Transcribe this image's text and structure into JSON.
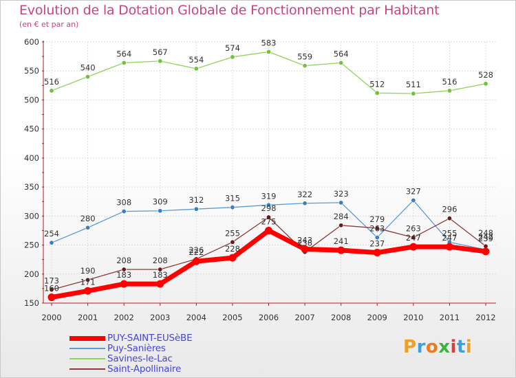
{
  "title": "Evolution de la Dotation Globale de Fonctionnement par Habitant",
  "subtitle": "(en € et par an)",
  "colors": {
    "title": "#c8447e",
    "axis": "#aa2222",
    "grid": "#dddddd",
    "legend_text": "#4545d8"
  },
  "logo": {
    "letters": [
      "P",
      "r",
      "o",
      "x",
      "i",
      "t",
      "i"
    ],
    "colors": [
      "#f0a020",
      "#3ca0dc",
      "#f07820",
      "#3cb43c",
      "#dc3c3c",
      "#3ca0dc",
      "#f0a020"
    ]
  },
  "chart_data": {
    "type": "line",
    "title": "Evolution de la Dotation Globale de Fonctionnement par Habitant",
    "subtitle": "(en € et par an)",
    "xlabel": "",
    "ylabel": "",
    "x": [
      "2000",
      "2001",
      "2002",
      "2003",
      "2004",
      "2005",
      "2006",
      "2007",
      "2008",
      "2009",
      "2010",
      "2011",
      "2012"
    ],
    "ylim": [
      150,
      600
    ],
    "yticks": [
      150,
      200,
      250,
      300,
      350,
      400,
      450,
      500,
      550,
      600
    ],
    "grid": true,
    "legend_position": "bottom-left",
    "series": [
      {
        "name": "PUY-SAINT-EUSèBE",
        "color": "#ff0000",
        "marker": "#ff0000",
        "values": [
          160,
          171,
          183,
          183,
          222,
          228,
          275,
          243,
          241,
          237,
          247,
          247,
          239
        ],
        "labels": [
          "160",
          "171",
          "183",
          "183",
          "222",
          "228",
          "275",
          "243",
          "241",
          "237",
          "247",
          "247",
          "239"
        ],
        "label_dy": [
          -9,
          -9,
          -9,
          -9,
          -9,
          -9,
          -9,
          -9,
          -9,
          -9,
          -9,
          -9,
          -15
        ]
      },
      {
        "name": "Puy-Sanières",
        "color": "#5b9bd5",
        "marker": "#3c7fc0",
        "values": [
          254,
          280,
          308,
          309,
          312,
          315,
          319,
          322,
          323,
          263,
          327,
          255,
          242
        ],
        "labels": [
          "254",
          "280",
          "308",
          "309",
          "312",
          "315",
          "319",
          "322",
          "323",
          "263",
          "327",
          "255",
          "242"
        ],
        "label_dy": [
          -9,
          -9,
          -9,
          -9,
          -9,
          -9,
          -9,
          -9,
          -9,
          -9,
          -9,
          -9,
          -15
        ]
      },
      {
        "name": "Savines-le-Lac",
        "color": "#8fd45a",
        "marker": "#72c23a",
        "values": [
          516,
          540,
          564,
          567,
          554,
          574,
          583,
          559,
          564,
          512,
          511,
          516,
          528
        ],
        "labels": [
          "516",
          "540",
          "564",
          "567",
          "554",
          "574",
          "583",
          "559",
          "564",
          "512",
          "511",
          "516",
          "528"
        ],
        "label_dy": [
          -9,
          -9,
          -9,
          -9,
          -9,
          -9,
          -9,
          -9,
          -9,
          -9,
          -9,
          -9,
          -9
        ]
      },
      {
        "name": "Saint-Apollinaire",
        "color": "#8a3a3a",
        "marker": "#6a1818",
        "values": [
          173,
          190,
          208,
          208,
          226,
          255,
          298,
          238,
          284,
          279,
          263,
          296,
          248
        ],
        "labels": [
          "173",
          "190",
          "208",
          "208",
          "226",
          "255",
          "298",
          "238",
          "284",
          "279",
          "263",
          "296",
          "248"
        ],
        "label_dy": [
          -9,
          -9,
          -9,
          -9,
          -9,
          -9,
          -9,
          -9,
          -9,
          -9,
          -9,
          -9,
          -15
        ]
      }
    ]
  }
}
